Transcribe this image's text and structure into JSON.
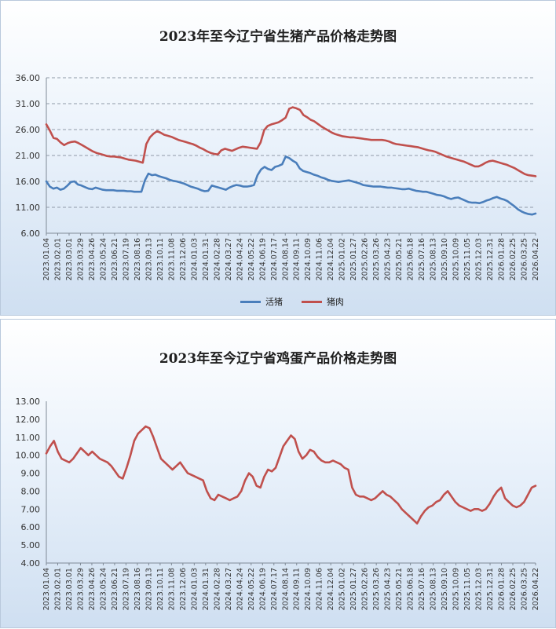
{
  "chart_data": [
    {
      "type": "line",
      "title": "2023年至今辽宁省生猪产品价格走势图",
      "ylim": [
        6,
        36
      ],
      "yticks": [
        "36.00",
        "31.00",
        "26.00",
        "21.00",
        "16.00",
        "11.00",
        "6.00"
      ],
      "grid": true,
      "legend": "bottom",
      "x_tick_labels": [
        "2023.01.04",
        "2023.02.01",
        "2023.03.01",
        "2023.03.29",
        "2023.04.26",
        "2023.05.24",
        "2023.06.21",
        "2023.07.19",
        "2023.08.16",
        "2023.09.13",
        "2023.10.11",
        "2023.11.08",
        "2023.12.06",
        "2024.01.03",
        "2024.01.31",
        "2024.02.28",
        "2024.03.27",
        "2024.04.24",
        "2024.05.22",
        "2024.06.19",
        "2024.07.17",
        "2024.08.14",
        "2024.09.11",
        "2024.10.09",
        "2024.11.06",
        "2024.12.04",
        "2025.01.02",
        "2025.01.27",
        "2025.02.26",
        "2025.03.26",
        "2025.04.23",
        "2025.05.21",
        "2025.06.18",
        "2025.07.16",
        "2025.08.13",
        "2025.09.10",
        "2025.10.09",
        "2025.11.05",
        "2025.12.03",
        "2025.12.31",
        "2026.01.28",
        "2026.02.25",
        "2026.03.25",
        "2026.04.22"
      ],
      "series": [
        {
          "name": "活猪",
          "color": "#4a7ebb",
          "values": [
            16.0,
            15.0,
            14.6,
            14.8,
            14.4,
            14.6,
            15.2,
            15.9,
            16.0,
            15.4,
            15.2,
            14.9,
            14.6,
            14.5,
            14.8,
            14.6,
            14.4,
            14.3,
            14.3,
            14.3,
            14.2,
            14.2,
            14.2,
            14.1,
            14.1,
            14.0,
            14.0,
            14.0,
            16.2,
            17.5,
            17.2,
            17.3,
            17.0,
            16.8,
            16.6,
            16.3,
            16.1,
            16.0,
            15.8,
            15.6,
            15.3,
            15.0,
            14.8,
            14.6,
            14.3,
            14.1,
            14.2,
            15.2,
            15.0,
            14.8,
            14.6,
            14.4,
            14.8,
            15.1,
            15.3,
            15.2,
            15.0,
            15.0,
            15.1,
            15.3,
            17.2,
            18.3,
            18.8,
            18.4,
            18.2,
            18.8,
            19.0,
            19.3,
            20.8,
            20.5,
            20.0,
            19.6,
            18.5,
            18.0,
            17.8,
            17.6,
            17.3,
            17.1,
            16.8,
            16.6,
            16.3,
            16.1,
            16.0,
            15.9,
            16.0,
            16.1,
            16.2,
            16.0,
            15.8,
            15.6,
            15.3,
            15.2,
            15.1,
            15.0,
            15.0,
            15.0,
            14.9,
            14.8,
            14.8,
            14.7,
            14.6,
            14.5,
            14.5,
            14.6,
            14.4,
            14.2,
            14.1,
            14.0,
            14.0,
            13.8,
            13.6,
            13.4,
            13.3,
            13.1,
            12.8,
            12.6,
            12.8,
            12.9,
            12.6,
            12.3,
            12.0,
            11.9,
            11.9,
            11.8,
            12.0,
            12.3,
            12.5,
            12.8,
            13.0,
            12.7,
            12.5,
            12.2,
            11.7,
            11.2,
            10.6,
            10.2,
            9.9,
            9.7,
            9.6,
            9.8
          ]
        },
        {
          "name": "猪肉",
          "color": "#c0504d",
          "values": [
            27.0,
            25.8,
            24.4,
            24.2,
            23.5,
            23.0,
            23.4,
            23.6,
            23.7,
            23.4,
            23.0,
            22.6,
            22.2,
            21.8,
            21.5,
            21.3,
            21.1,
            20.9,
            20.8,
            20.8,
            20.7,
            20.6,
            20.4,
            20.2,
            20.1,
            20.0,
            19.8,
            19.6,
            23.2,
            24.5,
            25.2,
            25.7,
            25.4,
            25.0,
            24.8,
            24.6,
            24.3,
            24.0,
            23.8,
            23.6,
            23.4,
            23.2,
            22.9,
            22.5,
            22.2,
            21.8,
            21.5,
            21.3,
            21.2,
            22.0,
            22.3,
            22.1,
            21.9,
            22.2,
            22.5,
            22.7,
            22.6,
            22.5,
            22.4,
            22.3,
            23.5,
            25.9,
            26.7,
            27.0,
            27.2,
            27.4,
            27.8,
            28.3,
            30.0,
            30.3,
            30.1,
            29.8,
            28.8,
            28.4,
            27.9,
            27.6,
            27.1,
            26.6,
            26.2,
            25.8,
            25.4,
            25.1,
            24.9,
            24.7,
            24.6,
            24.5,
            24.5,
            24.4,
            24.3,
            24.2,
            24.1,
            24.0,
            24.0,
            24.0,
            24.0,
            23.9,
            23.7,
            23.4,
            23.2,
            23.1,
            23.0,
            22.9,
            22.8,
            22.7,
            22.6,
            22.4,
            22.2,
            22.0,
            21.9,
            21.7,
            21.4,
            21.1,
            20.8,
            20.6,
            20.4,
            20.2,
            20.0,
            19.8,
            19.5,
            19.2,
            18.9,
            18.9,
            19.2,
            19.6,
            19.9,
            20.0,
            19.8,
            19.6,
            19.4,
            19.2,
            18.9,
            18.6,
            18.2,
            17.8,
            17.4,
            17.2,
            17.1,
            17.0
          ]
        }
      ]
    },
    {
      "type": "line",
      "title": "2023年至今辽宁省鸡蛋产品价格走势图",
      "ylim": [
        4,
        13
      ],
      "yticks": [
        "13.00",
        "12.00",
        "11.00",
        "10.00",
        "9.00",
        "8.00",
        "7.00",
        "6.00",
        "5.00",
        "4.00"
      ],
      "grid": false,
      "legend": "none",
      "x_tick_labels": [
        "2023.01.04",
        "2023.02.01",
        "2023.03.01",
        "2023.03.29",
        "2023.04.26",
        "2023.05.24",
        "2023.06.21",
        "2023.07.19",
        "2023.08.16",
        "2023.09.13",
        "2023.10.11",
        "2023.11.08",
        "2023.12.06",
        "2024.01.03",
        "2024.01.31",
        "2024.02.28",
        "2024.03.27",
        "2024.04.24",
        "2024.05.22",
        "2024.06.19",
        "2024.07.17",
        "2024.08.14",
        "2024.09.11",
        "2024.10.09",
        "2024.11.06",
        "2024.12.04",
        "2025.01.02",
        "2025.01.27",
        "2025.02.26",
        "2025.03.26",
        "2025.04.23",
        "2025.05.21",
        "2025.06.18",
        "2025.07.16",
        "2025.08.13",
        "2025.09.10",
        "2025.10.09",
        "2025.11.05",
        "2025.12.03",
        "2025.12.31",
        "2026.01.28",
        "2026.02.25",
        "2026.03.25",
        "2026.04.22"
      ],
      "series": [
        {
          "name": "鸡蛋",
          "color": "#c0504d",
          "values": [
            10.1,
            10.5,
            10.8,
            10.2,
            9.8,
            9.7,
            9.6,
            9.8,
            10.1,
            10.4,
            10.2,
            10.0,
            10.2,
            10.0,
            9.8,
            9.7,
            9.6,
            9.4,
            9.1,
            8.8,
            8.7,
            9.3,
            10.0,
            10.8,
            11.2,
            11.4,
            11.6,
            11.5,
            11.0,
            10.4,
            9.8,
            9.6,
            9.4,
            9.2,
            9.4,
            9.6,
            9.3,
            9.0,
            8.9,
            8.8,
            8.7,
            8.6,
            8.0,
            7.6,
            7.5,
            7.8,
            7.7,
            7.6,
            7.5,
            7.6,
            7.7,
            8.0,
            8.6,
            9.0,
            8.8,
            8.3,
            8.2,
            8.8,
            9.2,
            9.1,
            9.3,
            9.9,
            10.5,
            10.8,
            11.1,
            10.9,
            10.2,
            9.8,
            10.0,
            10.3,
            10.2,
            9.9,
            9.7,
            9.6,
            9.6,
            9.7,
            9.6,
            9.5,
            9.3,
            9.2,
            8.2,
            7.8,
            7.7,
            7.7,
            7.6,
            7.5,
            7.6,
            7.8,
            8.0,
            7.8,
            7.7,
            7.5,
            7.3,
            7.0,
            6.8,
            6.6,
            6.4,
            6.2,
            6.6,
            6.9,
            7.1,
            7.2,
            7.4,
            7.5,
            7.8,
            8.0,
            7.7,
            7.4,
            7.2,
            7.1,
            7.0,
            6.9,
            7.0,
            7.0,
            6.9,
            7.0,
            7.3,
            7.7,
            8.0,
            8.2,
            7.6,
            7.4,
            7.2,
            7.1,
            7.2,
            7.4,
            7.8,
            8.2,
            8.3
          ]
        }
      ]
    }
  ]
}
